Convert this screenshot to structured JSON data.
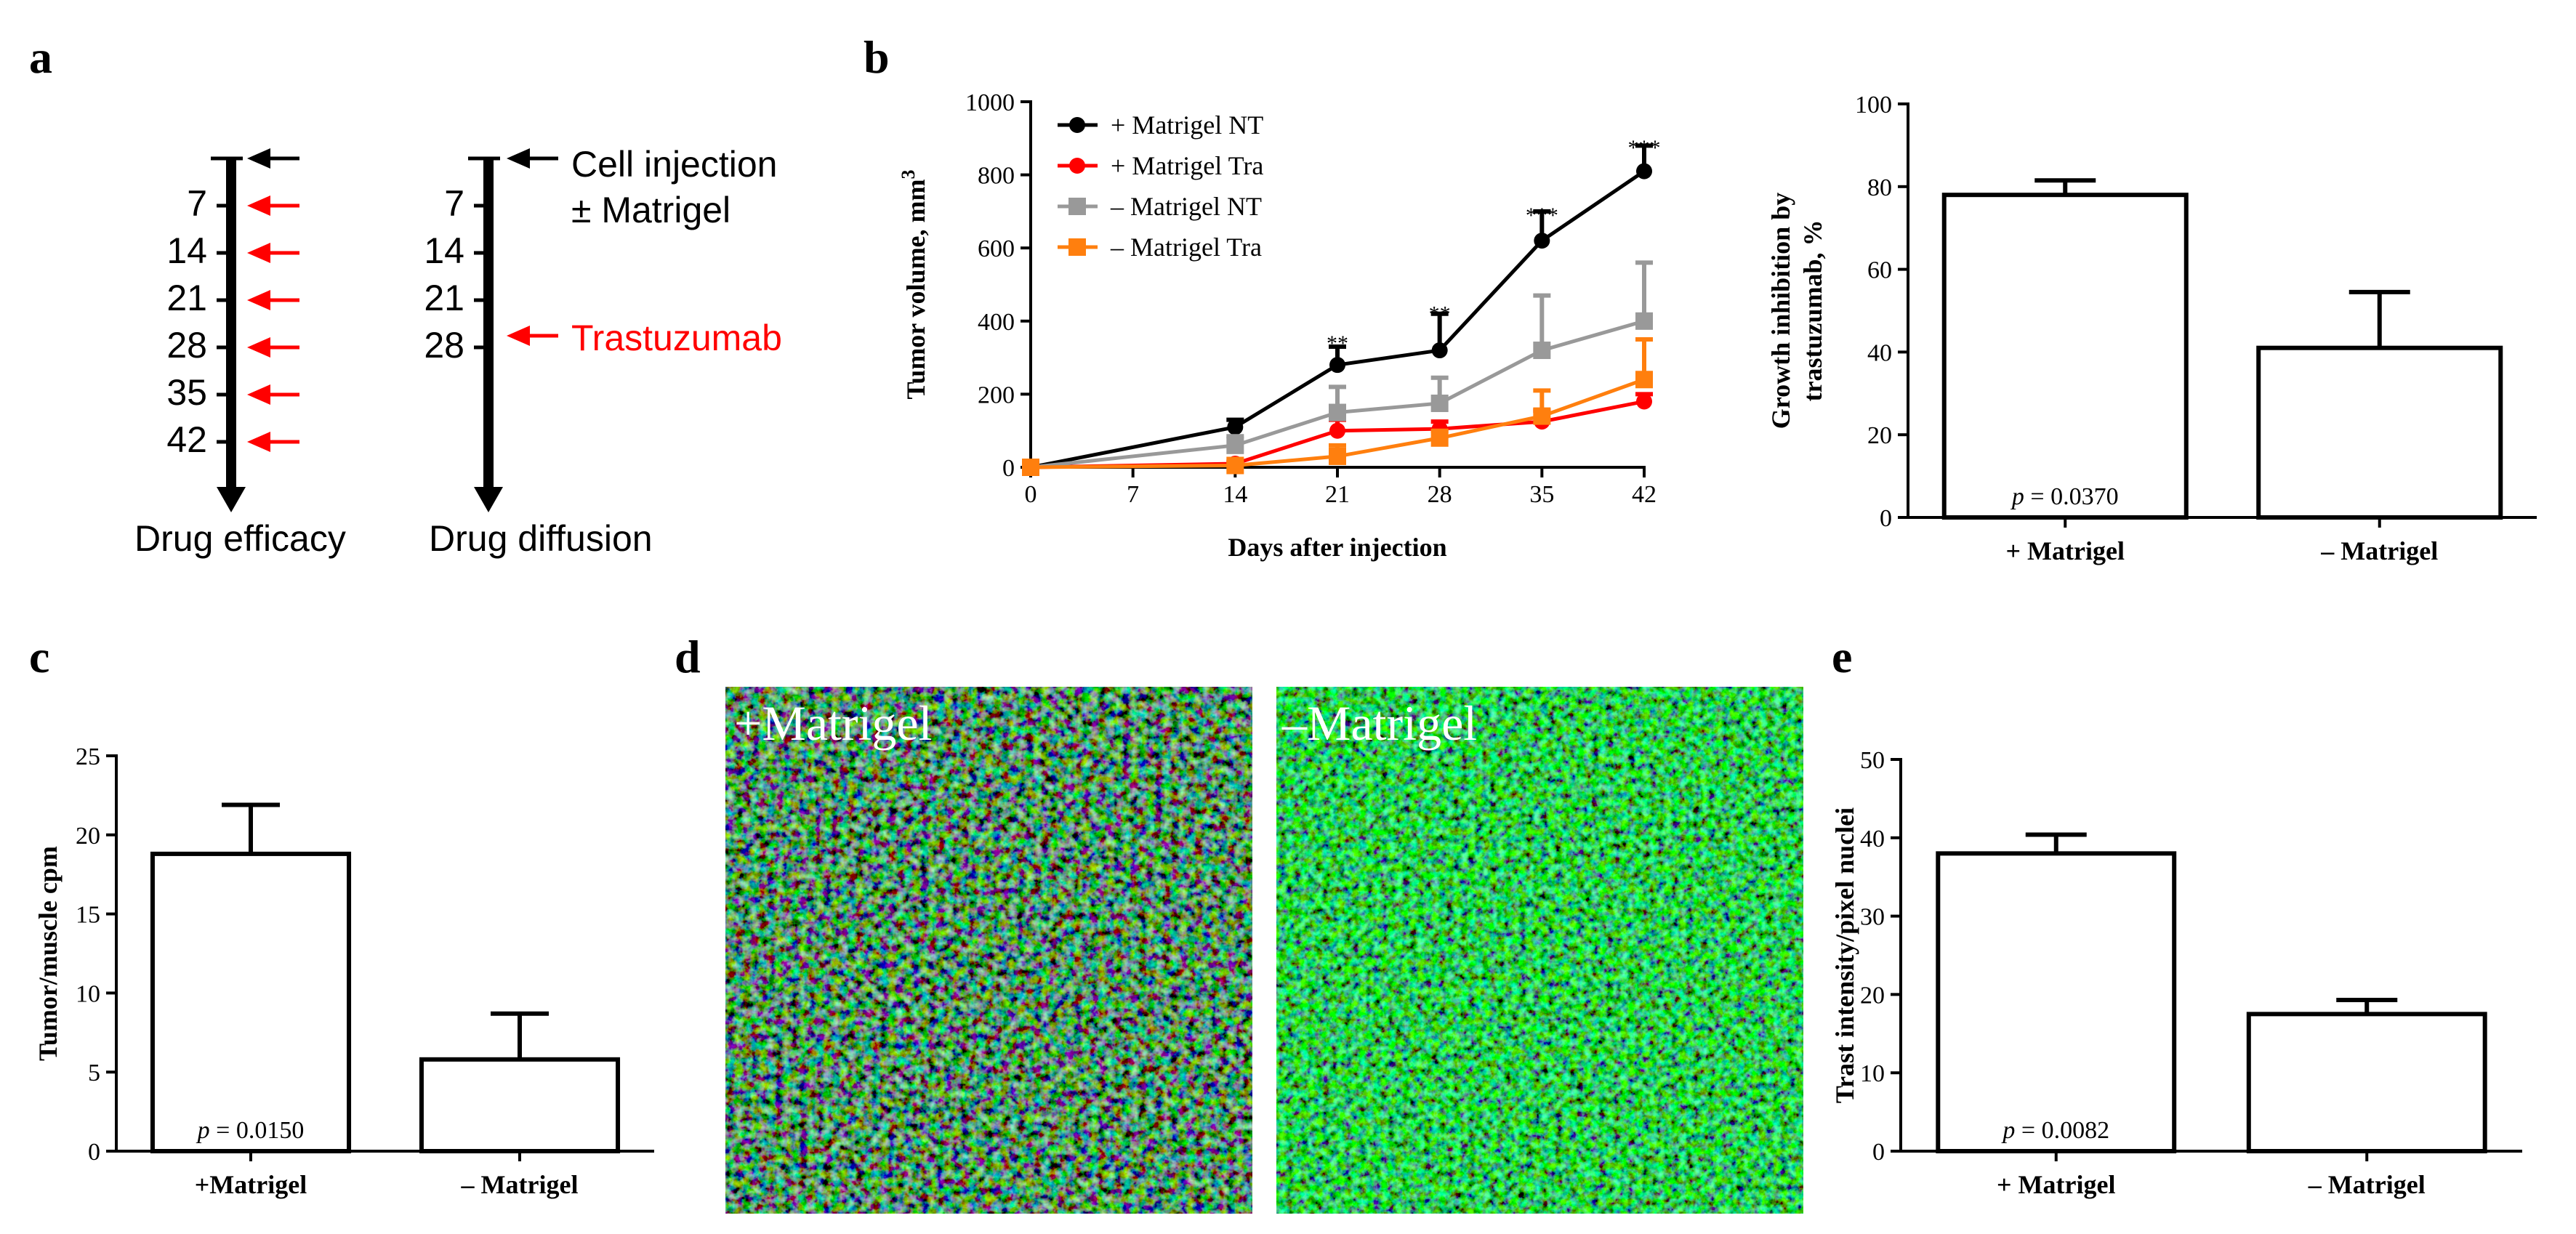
{
  "panel_labels": {
    "a": "a",
    "b": "b",
    "c": "c",
    "d": "d",
    "e": "e"
  },
  "timelines": {
    "efficacy": {
      "ticks": [
        "7",
        "14",
        "21",
        "28",
        "35",
        "42"
      ],
      "caption": "Drug efficacy"
    },
    "diffusion": {
      "ticks": [
        "7",
        "14",
        "21",
        "28"
      ],
      "caption": "Drug diffusion"
    },
    "cell_injection_line1": "Cell injection",
    "cell_injection_line2": "± Matrigel",
    "drug_label": "Trastuzumab",
    "colors": {
      "injection": "#000000",
      "drug": "#ff0000"
    }
  },
  "images": {
    "left_label": "+Matrigel",
    "right_label": "–Matrigel"
  },
  "chart_data": [
    {
      "id": "b_line",
      "type": "line",
      "title": "",
      "xlabel": "Days after injection",
      "ylabel": "Tumor volume, mm",
      "ylabel_sup": "3",
      "x": [
        0,
        7,
        14,
        21,
        28,
        35,
        42
      ],
      "x_ticks": [
        "0",
        "7",
        "14",
        "21",
        "28",
        "35",
        "42"
      ],
      "xlim": [
        0,
        42
      ],
      "ylim": [
        0,
        1000
      ],
      "y_ticks": [
        "0",
        "200",
        "400",
        "600",
        "800",
        "1000"
      ],
      "series": [
        {
          "name": "+ Matrigel NT",
          "color": "#000000",
          "marker": "circle",
          "x": [
            0,
            14,
            21,
            28,
            35,
            42
          ],
          "values": [
            0,
            110,
            280,
            320,
            620,
            810
          ],
          "err": [
            0,
            20,
            50,
            100,
            80,
            70
          ]
        },
        {
          "name": "+ Matrigel Tra",
          "color": "#ff0000",
          "marker": "circle",
          "x": [
            0,
            14,
            21,
            28,
            35,
            42
          ],
          "values": [
            0,
            10,
            100,
            105,
            125,
            180
          ],
          "err": [
            0,
            5,
            30,
            20,
            30,
            20
          ]
        },
        {
          "name": "– Matrigel NT",
          "color": "#999999",
          "marker": "square",
          "x": [
            0,
            14,
            21,
            28,
            35,
            42
          ],
          "values": [
            0,
            60,
            150,
            175,
            320,
            400
          ],
          "err": [
            0,
            25,
            70,
            70,
            150,
            160
          ]
        },
        {
          "name": "– Matrigel Tra",
          "color": "#ff7f0e",
          "marker": "square",
          "x": [
            0,
            14,
            21,
            28,
            35,
            42
          ],
          "values": [
            0,
            5,
            30,
            80,
            140,
            240
          ],
          "err": [
            0,
            5,
            30,
            20,
            70,
            110
          ]
        }
      ],
      "annotations": [
        {
          "x": 21,
          "y": 360,
          "text": "**"
        },
        {
          "x": 28,
          "y": 440,
          "text": "**"
        },
        {
          "x": 35,
          "y": 710,
          "text": "***"
        },
        {
          "x": 42,
          "y": 895,
          "text": "***"
        }
      ]
    },
    {
      "id": "b_bar",
      "type": "bar",
      "title": "",
      "ylabel_line1": "Growth inhibition by",
      "ylabel_line2": "trastuzumab, %",
      "xlabel": "",
      "categories": [
        "+ Matrigel",
        "– Matrigel"
      ],
      "values": [
        78,
        41
      ],
      "err": [
        3.5,
        13.5
      ],
      "ylim": [
        0,
        100
      ],
      "y_ticks": [
        "0",
        "20",
        "40",
        "60",
        "80",
        "100"
      ],
      "p_text": "= 0.0370"
    },
    {
      "id": "c_bar",
      "type": "bar",
      "title": "",
      "ylabel": "Tumor/muscle cpm",
      "xlabel": "",
      "categories": [
        "+Matrigel",
        "– Matrigel"
      ],
      "values": [
        18.8,
        5.8
      ],
      "err": [
        3.1,
        2.9
      ],
      "ylim": [
        0,
        25
      ],
      "y_ticks": [
        "0",
        "5",
        "10",
        "15",
        "20",
        "25"
      ],
      "p_text": "= 0.0150"
    },
    {
      "id": "e_bar",
      "type": "bar",
      "title": "",
      "ylabel": "Trast intensity/pixel nuclei",
      "xlabel": "",
      "categories": [
        "+ Matrigel",
        "– Matrigel"
      ],
      "values": [
        38,
        17.5
      ],
      "err": [
        2.4,
        1.8
      ],
      "ylim": [
        0,
        50
      ],
      "y_ticks": [
        "0",
        "10",
        "20",
        "30",
        "40",
        "50"
      ],
      "p_text": "= 0.0082"
    }
  ],
  "p_symbol": "p"
}
